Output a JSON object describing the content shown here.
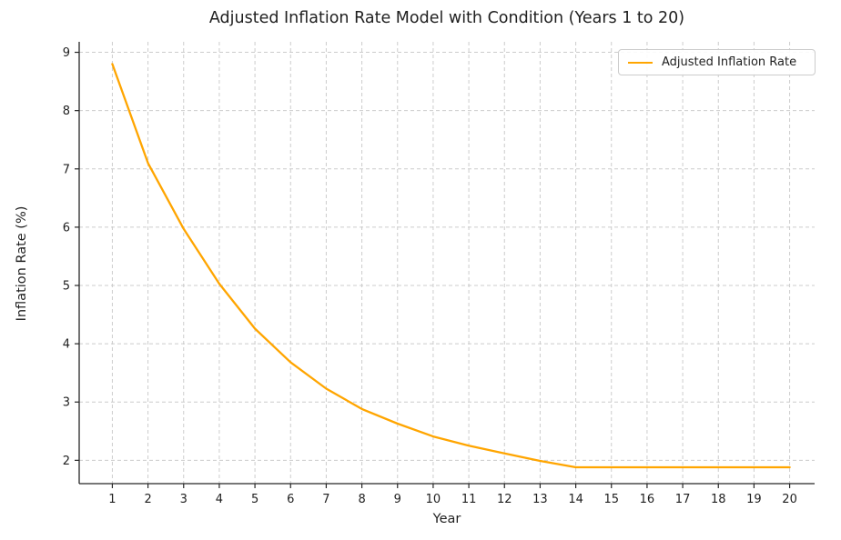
{
  "chart_data": {
    "type": "line",
    "title": "Adjusted Inflation Rate Model with Condition (Years 1 to 20)",
    "xlabel": "Year",
    "ylabel": "Inflation Rate (%)",
    "x": [
      1,
      2,
      3,
      4,
      5,
      6,
      7,
      8,
      9,
      10,
      11,
      12,
      13,
      14,
      15,
      16,
      17,
      18,
      19,
      20
    ],
    "series": [
      {
        "name": "Adjusted Inflation Rate",
        "color": "#FFA500",
        "values": [
          8.8,
          7.1,
          5.97,
          5.03,
          4.26,
          3.68,
          3.23,
          2.88,
          2.63,
          2.41,
          2.25,
          2.12,
          1.99,
          1.88,
          1.88,
          1.88,
          1.88,
          1.88,
          1.88,
          1.88
        ]
      }
    ],
    "xticks": [
      "1",
      "2",
      "3",
      "4",
      "5",
      "6",
      "7",
      "8",
      "9",
      "10",
      "11",
      "12",
      "13",
      "14",
      "15",
      "16",
      "17",
      "18",
      "19",
      "20"
    ],
    "yticks": [
      "2",
      "3",
      "4",
      "5",
      "6",
      "7",
      "8",
      "9"
    ],
    "xlim": [
      0.07,
      20.7
    ],
    "ylim": [
      1.6,
      9.18
    ],
    "grid": true,
    "grid_style": "dashed",
    "grid_color": "#cccccc",
    "spine_color": "#262626",
    "legend_position": "upper right",
    "legend_entries": [
      "Adjusted Inflation Rate"
    ]
  }
}
